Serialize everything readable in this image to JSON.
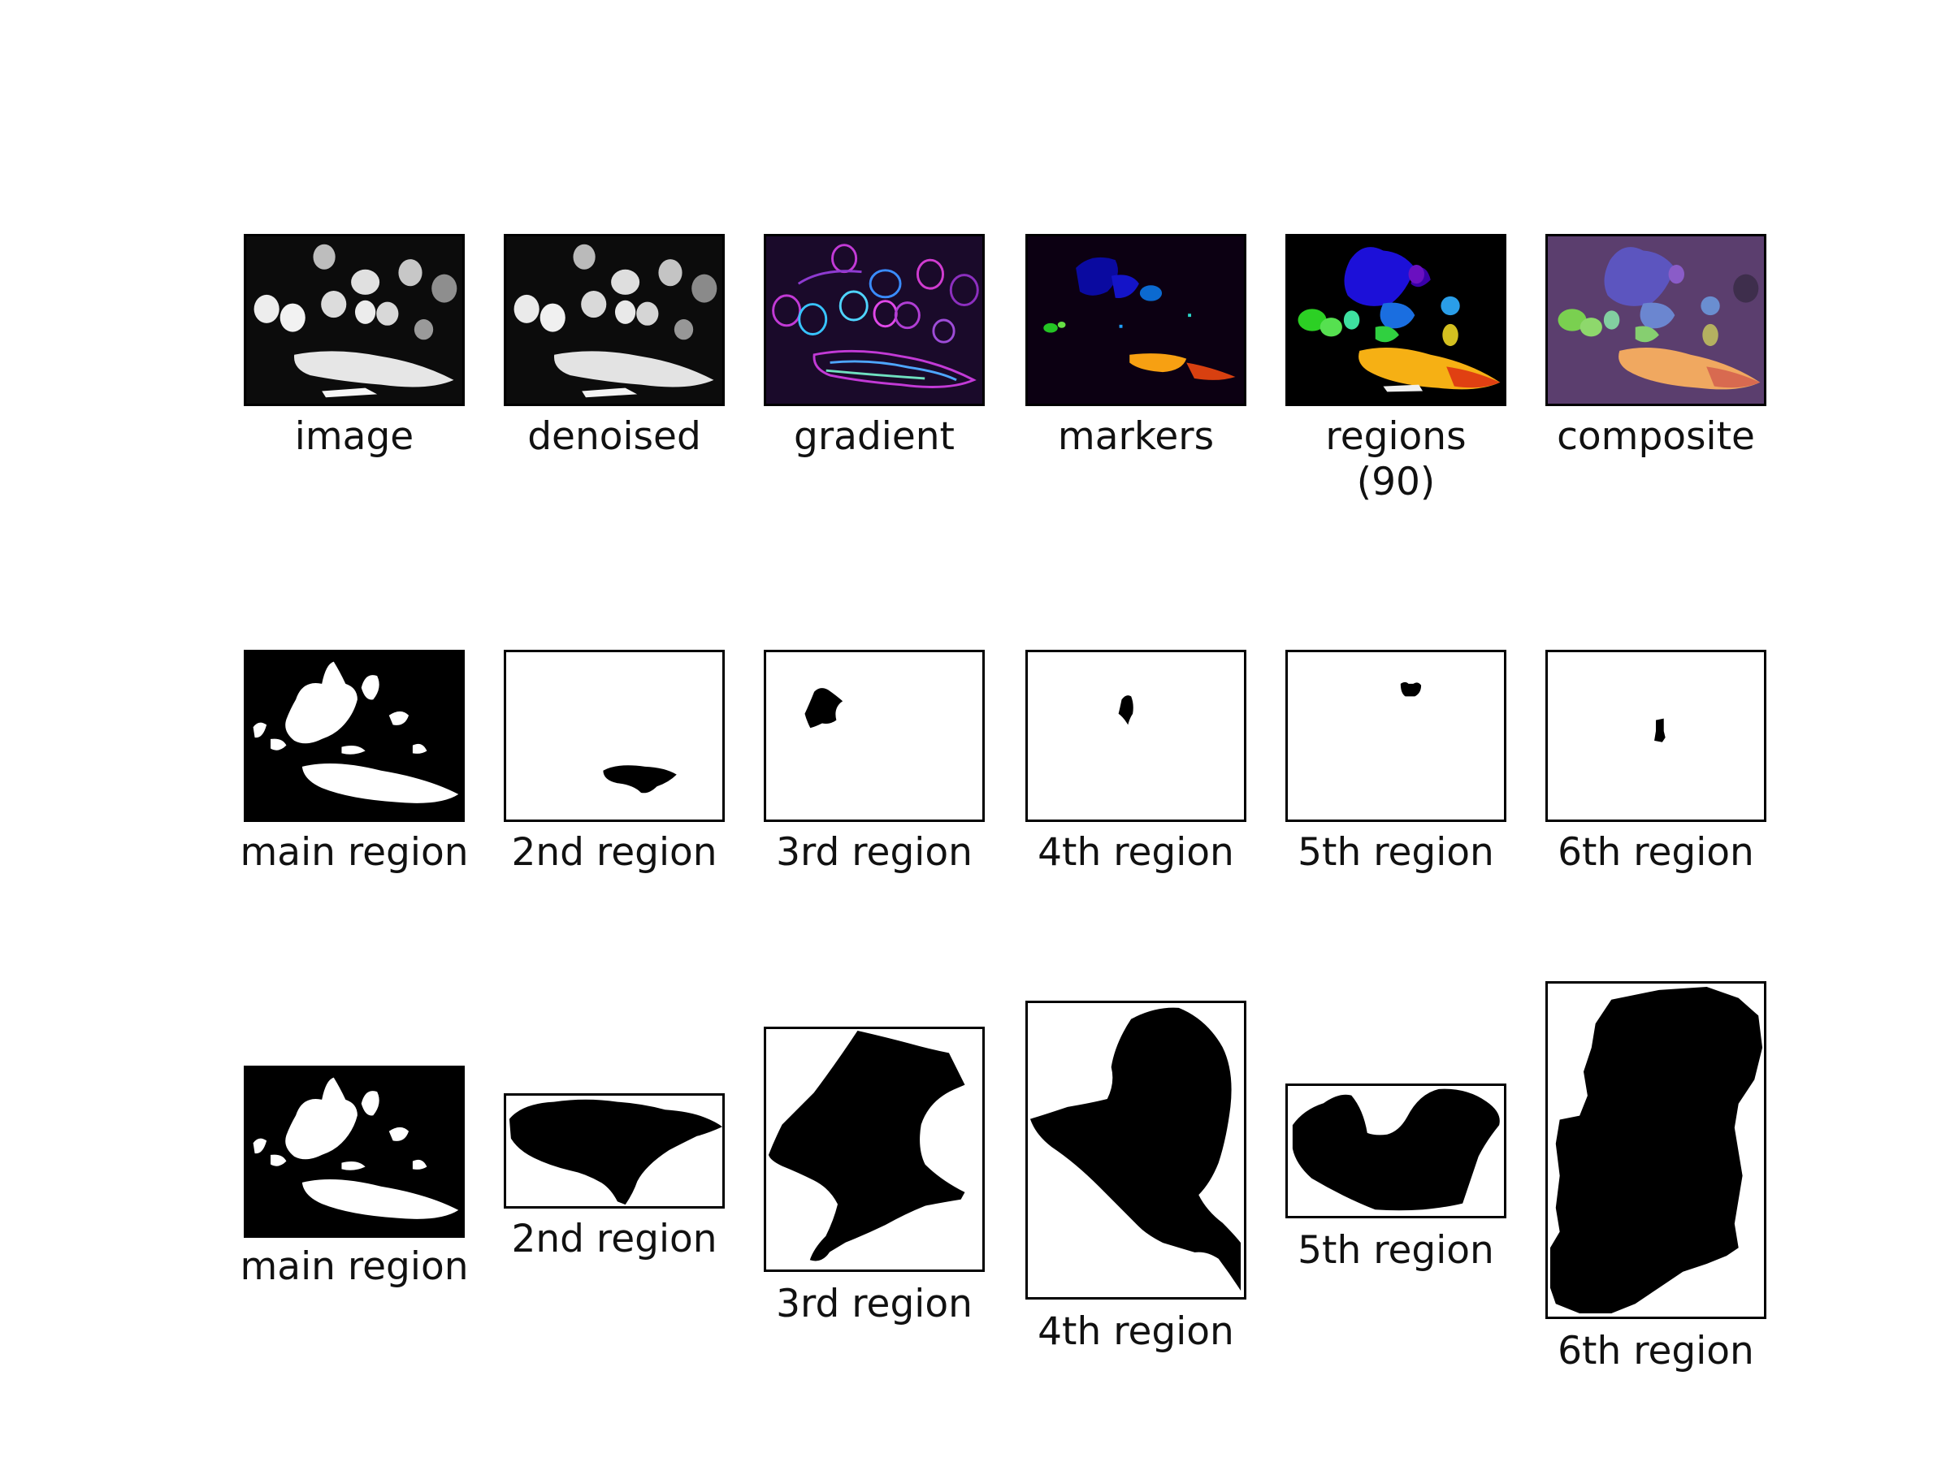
{
  "row1": {
    "image": "image",
    "denoised": "denoised",
    "gradient": "gradient",
    "markers": "markers",
    "regions_line1": "regions",
    "regions_line2": "(90)",
    "composite": "composite"
  },
  "row2": [
    "main region",
    "2nd region",
    "3rd region",
    "4th region",
    "5th region",
    "6th region"
  ],
  "row3": [
    "main region",
    "2nd region",
    "3rd region",
    "4th region",
    "5th region",
    "6th region"
  ],
  "colors": {
    "background": "#ffffff",
    "mask_fg": "#000000",
    "gradient_bg": "#1a0a2a",
    "markers_bg": "#0c0012",
    "regions_bg": "#000000",
    "composite_bg": "#5b3e6e"
  }
}
